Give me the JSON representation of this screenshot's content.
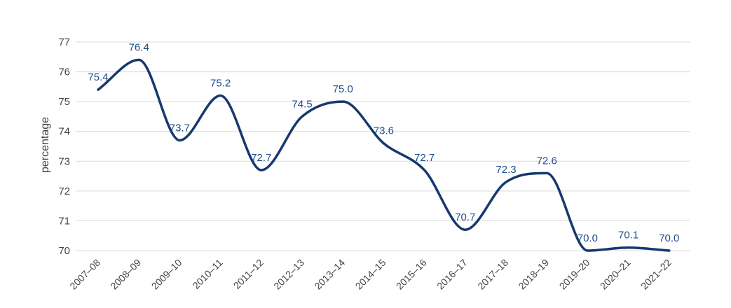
{
  "chart_data": {
    "type": "line",
    "title": "",
    "xlabel": "",
    "ylabel": "percentage",
    "ylim": [
      70,
      77
    ],
    "yticks": [
      "70",
      "71",
      "72",
      "73",
      "74",
      "75",
      "76",
      "77"
    ],
    "grid": true,
    "categories": [
      "2007–08",
      "2008–09",
      "2009–10",
      "2010–11",
      "2011–12",
      "2012–13",
      "2013–14",
      "2014–15",
      "2015–16",
      "2016–17",
      "2017–18",
      "2018–19",
      "2019–20",
      "2020–21",
      "2021–22"
    ],
    "series": [
      {
        "color": "#17386f",
        "values": [
          75.4,
          76.4,
          73.7,
          75.2,
          72.7,
          74.5,
          75.0,
          73.6,
          72.7,
          70.7,
          72.3,
          72.6,
          70.0,
          70.1,
          70.0
        ],
        "labels": [
          "75.4",
          "76.4",
          "73.7",
          "75.2",
          "72.7",
          "74.5",
          "75.0",
          "73.6",
          "72.7",
          "70.7",
          "72.3",
          "72.6",
          "70.0",
          "70.1",
          "70.0"
        ]
      }
    ],
    "colors": {
      "line": "#17386f",
      "data_label": "#1f4e8c",
      "grid": "#d9d9d9",
      "axis_text": "#444444"
    }
  }
}
